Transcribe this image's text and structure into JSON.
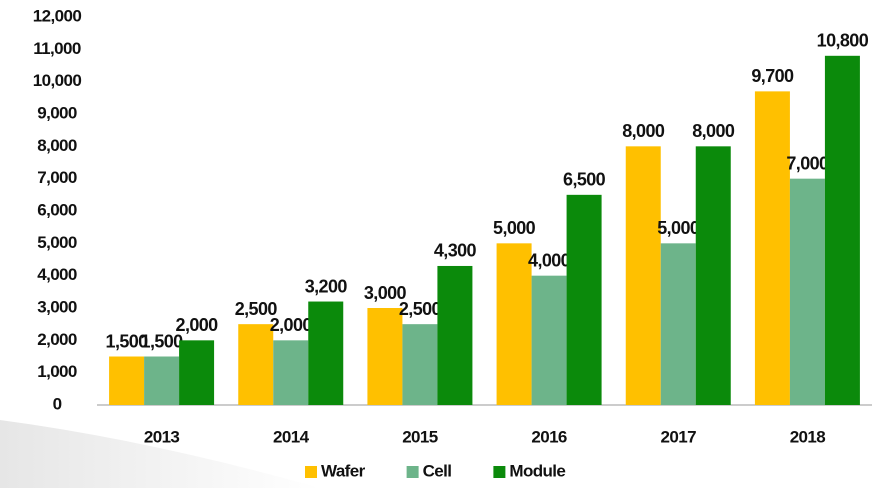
{
  "chart_data": {
    "type": "bar",
    "categories": [
      "2013",
      "2014",
      "2015",
      "2016",
      "2017",
      "2018"
    ],
    "series": [
      {
        "name": "Wafer",
        "color": "#ffc000",
        "values": [
          1500,
          2500,
          3000,
          5000,
          8000,
          9700
        ],
        "value_labels": [
          "1,500",
          "2,500",
          "3,000",
          "5,000",
          "8,000",
          "9,700"
        ]
      },
      {
        "name": "Cell",
        "color": "#6db48a",
        "values": [
          1500,
          2000,
          2500,
          4000,
          5000,
          7000
        ],
        "value_labels": [
          "1,500",
          "2,000",
          "2,500",
          "4,000",
          "5,000",
          "7,000"
        ]
      },
      {
        "name": "Module",
        "color": "#0b8a0b",
        "values": [
          2000,
          3200,
          4300,
          6500,
          8000,
          10800
        ],
        "value_labels": [
          "2,000",
          "3,200",
          "4,300",
          "6,500",
          "8,000",
          "10,800"
        ]
      }
    ],
    "ylim": [
      0,
      12000
    ],
    "yticks": [
      0,
      {
        "value": 1000,
        "label": "1,000"
      },
      {
        "value": 2000,
        "label": "2,000"
      },
      {
        "value": 3000,
        "label": "3,000"
      },
      {
        "value": 4000,
        "label": "4,000"
      },
      {
        "value": 5000,
        "label": "5,000"
      },
      {
        "value": 6000,
        "label": "6,000"
      },
      {
        "value": 7000,
        "label": "7,000"
      },
      {
        "value": 8000,
        "label": "8,000"
      },
      {
        "value": 9000,
        "label": "9,000"
      },
      {
        "value": 10000,
        "label": "10,000"
      },
      {
        "value": 11000,
        "label": "11,000"
      },
      {
        "value": 12000,
        "label": "12,000"
      }
    ],
    "grid": false,
    "legend": "bottom"
  }
}
